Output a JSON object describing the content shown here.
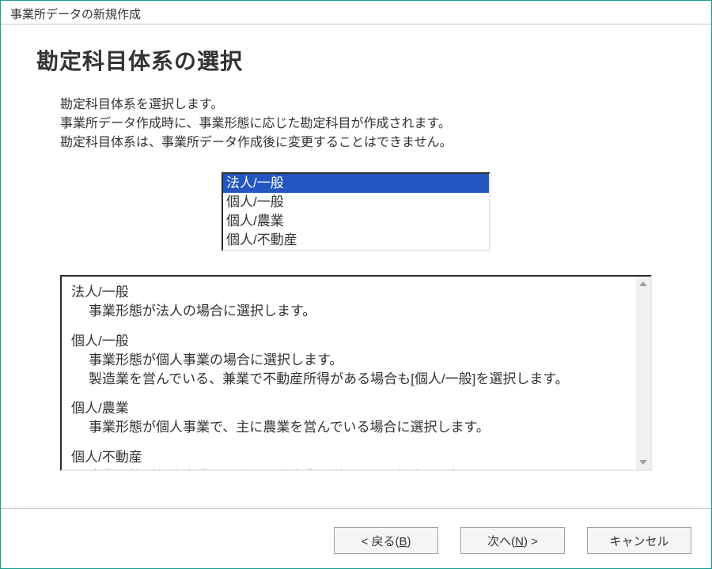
{
  "window": {
    "title": "事業所データの新規作成"
  },
  "heading": "勘定科目体系の選択",
  "description": {
    "line1": "勘定科目体系を選択します。",
    "line2": "事業所データ作成時に、事業形態に応じた勘定科目が作成されます。",
    "line3": "勘定科目体系は、事業所データ作成後に変更することはできません。"
  },
  "listbox": {
    "items": [
      {
        "label": "法人/一般",
        "selected": true
      },
      {
        "label": "個人/一般",
        "selected": false
      },
      {
        "label": "個人/農業",
        "selected": false
      },
      {
        "label": "個人/不動産",
        "selected": false
      }
    ]
  },
  "info": {
    "blocks": [
      {
        "title": "法人/一般",
        "lines": [
          "事業形態が法人の場合に選択します。"
        ]
      },
      {
        "title": "個人/一般",
        "lines": [
          "事業形態が個人事業の場合に選択します。",
          "製造業を営んでいる、兼業で不動産所得がある場合も[個人/一般]を選択します。"
        ]
      },
      {
        "title": "個人/農業",
        "lines": [
          "事業形態が個人事業で、主に農業を営んでいる場合に選択します。"
        ]
      },
      {
        "title": "個人/不動産",
        "lines": [
          "事業形態が個人事業で、主に不動産業を営んでいる場合に選択します。"
        ]
      }
    ]
  },
  "buttons": {
    "back_prefix": "< 戻る(",
    "back_key": "B",
    "back_suffix": ")",
    "next_prefix": "次へ(",
    "next_key": "N",
    "next_suffix": ") >",
    "cancel": "キャンセル"
  },
  "colors": {
    "window_border": "#1a9b8f",
    "selection": "#2456c2",
    "text": "#333333"
  }
}
